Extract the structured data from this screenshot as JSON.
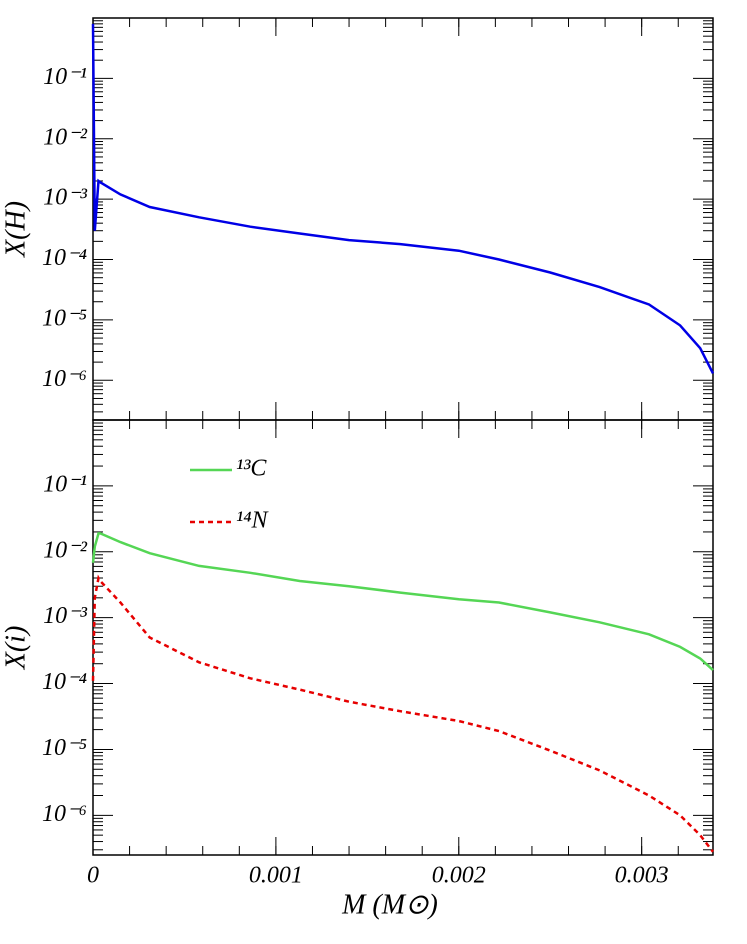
{
  "chart_data": [
    {
      "type": "line",
      "ylabel": "X(H)",
      "log_y": true,
      "x": [
        0,
        1e-05,
        3e-05,
        4e-05,
        0.00015,
        0.00031,
        0.00058,
        0.00086,
        0.00113,
        0.0014,
        0.00168,
        0.002,
        0.00222,
        0.0025,
        0.00277,
        0.00304,
        0.00321,
        0.00332,
        0.00339
      ],
      "xlim": [
        0,
        0.00339
      ],
      "ylim": [
        2.2e-07,
        1
      ],
      "yticks": [
        {
          "value": 0.1,
          "label": "10⁻¹"
        },
        {
          "value": 0.01,
          "label": "10⁻²"
        },
        {
          "value": 0.001,
          "label": "10⁻³"
        },
        {
          "value": 0.0001,
          "label": "10⁻⁴"
        },
        {
          "value": 1e-05,
          "label": "10⁻⁵"
        },
        {
          "value": 1e-06,
          "label": "10⁻⁶"
        }
      ],
      "series": [
        {
          "color": "#0000e6",
          "style": "solid",
          "values": [
            0.8,
            0.0003,
            0.002,
            0.0019,
            0.0012,
            0.00074,
            0.0005,
            0.00035,
            0.00027,
            0.00021,
            0.00018,
            0.00014,
            0.0001,
            6.1e-05,
            3.5e-05,
            1.8e-05,
            8.1e-06,
            3.4e-06,
            1.3e-06
          ]
        }
      ]
    },
    {
      "type": "line",
      "ylabel": "X(i)",
      "xlabel": "M (M⊙)",
      "log_y": true,
      "x": [
        0,
        1e-05,
        3e-05,
        4e-05,
        0.00015,
        0.00031,
        0.00058,
        0.00086,
        0.00113,
        0.0014,
        0.00168,
        0.002,
        0.00222,
        0.0025,
        0.00277,
        0.00304,
        0.00321,
        0.00332,
        0.00339
      ],
      "xlim": [
        0,
        0.00339
      ],
      "xticks": [
        0,
        0.001,
        0.002,
        0.003
      ],
      "ylim": [
        2.5e-07,
        1
      ],
      "yticks": [
        {
          "value": 0.1,
          "label": "10⁻¹"
        },
        {
          "value": 0.01,
          "label": "10⁻²"
        },
        {
          "value": 0.001,
          "label": "10⁻³"
        },
        {
          "value": 0.0001,
          "label": "10⁻⁴"
        },
        {
          "value": 1e-05,
          "label": "10⁻⁵"
        },
        {
          "value": 1e-06,
          "label": "10⁻⁶"
        }
      ],
      "series": [
        {
          "name": "¹³C",
          "color": "#55d655",
          "style": "solid",
          "values": [
            0.0068,
            0.012,
            0.019,
            0.019,
            0.014,
            0.0095,
            0.0061,
            0.0048,
            0.0036,
            0.003,
            0.0024,
            0.0019,
            0.0017,
            0.0012,
            0.00085,
            0.00056,
            0.00036,
            0.00024,
            0.00016
          ]
        },
        {
          "name": "¹⁴N",
          "color": "#e60000",
          "style": "dashed",
          "values": [
            0.00011,
            0.002,
            0.004,
            0.0036,
            0.0017,
            0.0005,
            0.00021,
            0.00012,
            8.1e-05,
            5.3e-05,
            3.8e-05,
            2.7e-05,
            1.9e-05,
            9.6e-06,
            4.8e-06,
            2e-06,
            1e-06,
            5e-07,
            2.8e-07
          ]
        }
      ]
    }
  ]
}
